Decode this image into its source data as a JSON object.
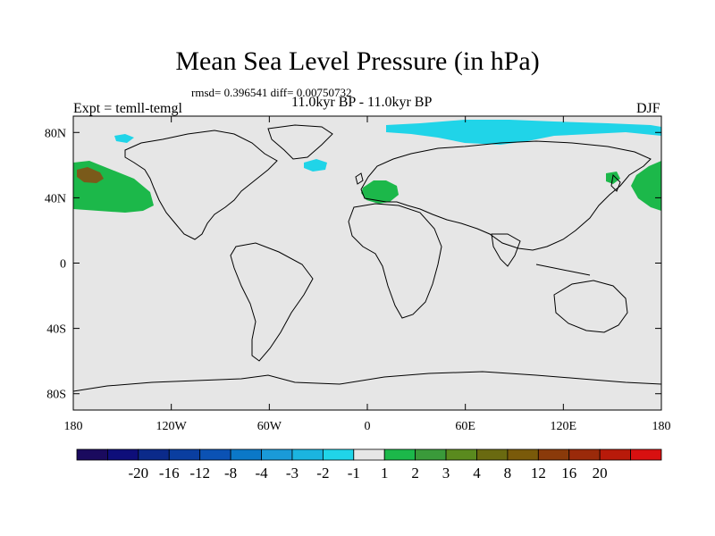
{
  "title": "Mean Sea Level Pressure (in hPa)",
  "stats": "rmsd= 0.396541 diff= 0.00750732",
  "period": "11.0kyr BP - 11.0kyr BP",
  "expt": "Expt = temll-temgl",
  "season": "DJF",
  "lat_labels": [
    "80N",
    "40N",
    "0",
    "40S",
    "80S"
  ],
  "lon_labels": [
    "180",
    "120W",
    "60W",
    "0",
    "60E",
    "120E",
    "180"
  ],
  "colorbar": {
    "colors": [
      "#1a0a5e",
      "#0e0e7a",
      "#0b2a8a",
      "#0a3ea0",
      "#0b52b4",
      "#0b78c8",
      "#1a9ad8",
      "#1bb4e0",
      "#20d4e8",
      "#e6e6e6",
      "#1cb84a",
      "#3a9a3a",
      "#5a8a1e",
      "#6a6a10",
      "#7a5a0a",
      "#8a3a0a",
      "#9a2a0a",
      "#b81a0a",
      "#d81010"
    ],
    "labels": [
      "-20",
      "-16",
      "-12",
      "-8",
      "-4",
      "-3",
      "-2",
      "-1",
      "1",
      "2",
      "3",
      "4",
      "8",
      "12",
      "16",
      "20"
    ]
  },
  "colors": {
    "ocean_land_fill": "#e6e6e6",
    "positive_anomaly": "#1cb84a",
    "strong_positive": "#7a5a1a",
    "negative_anomaly": "#20d4e8"
  }
}
